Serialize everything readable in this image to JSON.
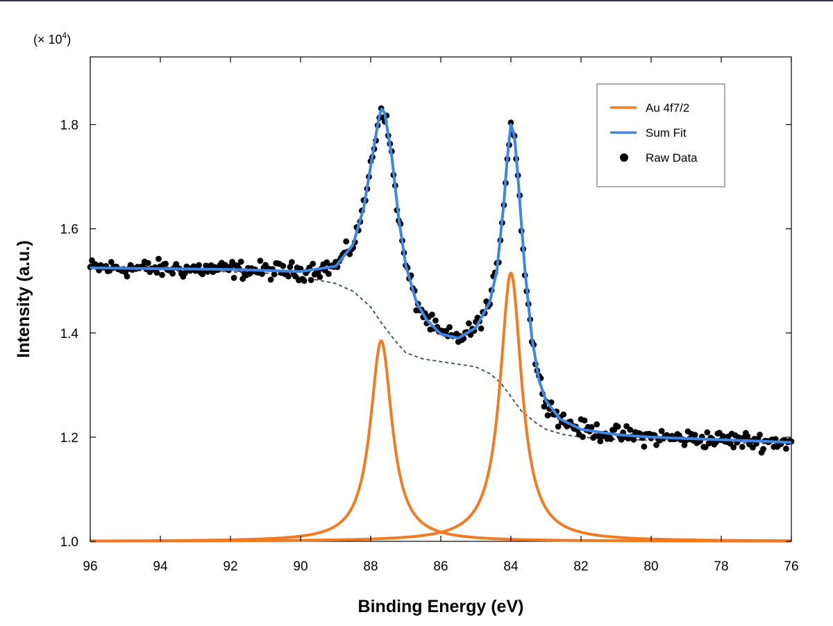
{
  "chart_data": {
    "type": "line",
    "xlabel": "Binding Energy (eV)",
    "ylabel": "Intensity (a.u.)",
    "y_multiplier_label": "(× 10",
    "y_multiplier_exponent": "4",
    "y_multiplier_close": ")",
    "x_axis_reversed": true,
    "xlim": [
      96,
      76
    ],
    "ylim": [
      1.0,
      1.93
    ],
    "x_ticks": [
      96,
      94,
      92,
      90,
      88,
      86,
      84,
      82,
      80,
      78,
      76
    ],
    "x_tick_labels": [
      "96",
      "94",
      "92",
      "90",
      "88",
      "86",
      "84",
      "82",
      "80",
      "78",
      "76"
    ],
    "y_ticks": [
      1.0,
      1.2,
      1.4,
      1.6,
      1.8
    ],
    "y_tick_labels": [
      "1.0",
      "1.2",
      "1.4",
      "1.6",
      "1.8"
    ],
    "grid": false,
    "legend_position": "top-right",
    "legend": [
      {
        "label": "Au 4f7/2",
        "kind": "line",
        "color": "#f47a1f"
      },
      {
        "label": "Sum Fit",
        "kind": "line",
        "color": "#3d86e6"
      },
      {
        "label": "Raw Data",
        "kind": "marker",
        "color": "#000000"
      }
    ],
    "series": [
      {
        "name": "Au 4f7/2",
        "color": "#f47a1f",
        "peaks": [
          {
            "center": 87.7,
            "height": 0.385,
            "fwhm": 0.75
          },
          {
            "center": 84.0,
            "height": 0.515,
            "fwhm": 0.75
          }
        ],
        "baseline": 1.0
      },
      {
        "name": "Sum Fit",
        "color": "#3d86e6",
        "x": [
          96.0,
          92.0,
          90.0,
          89.0,
          88.5,
          88.2,
          88.0,
          87.8,
          87.7,
          87.6,
          87.4,
          87.2,
          87.0,
          86.7,
          86.4,
          86.0,
          85.5,
          85.0,
          84.6,
          84.4,
          84.2,
          84.1,
          84.0,
          83.9,
          83.8,
          83.6,
          83.4,
          83.2,
          83.0,
          82.6,
          82.0,
          81.0,
          80.0,
          78.0,
          76.0
        ],
        "values": [
          1.525,
          1.522,
          1.518,
          1.528,
          1.57,
          1.64,
          1.72,
          1.8,
          1.832,
          1.822,
          1.74,
          1.62,
          1.53,
          1.46,
          1.425,
          1.398,
          1.39,
          1.41,
          1.46,
          1.52,
          1.65,
          1.74,
          1.8,
          1.78,
          1.7,
          1.52,
          1.39,
          1.31,
          1.27,
          1.235,
          1.215,
          1.205,
          1.2,
          1.195,
          1.19
        ]
      },
      {
        "name": "Background",
        "color": "#4a5563",
        "x": [
          96.0,
          93.0,
          91.0,
          90.0,
          89.0,
          88.5,
          88.0,
          87.7,
          87.3,
          87.0,
          86.5,
          86.0,
          85.5,
          85.0,
          84.6,
          84.3,
          84.0,
          83.7,
          83.3,
          83.0,
          82.5,
          82.0,
          81.0,
          80.0,
          78.0,
          76.0
        ],
        "values": [
          1.525,
          1.52,
          1.515,
          1.508,
          1.495,
          1.48,
          1.45,
          1.42,
          1.385,
          1.362,
          1.35,
          1.345,
          1.34,
          1.335,
          1.322,
          1.305,
          1.278,
          1.25,
          1.228,
          1.215,
          1.205,
          1.2,
          1.196,
          1.194,
          1.19,
          1.187
        ]
      },
      {
        "name": "Raw Data",
        "color": "#000000",
        "kind": "scatter",
        "x_start": 96.0,
        "x_end": 76.0,
        "x_step": 0.05,
        "noise_amplitude": 0.012
      }
    ]
  }
}
